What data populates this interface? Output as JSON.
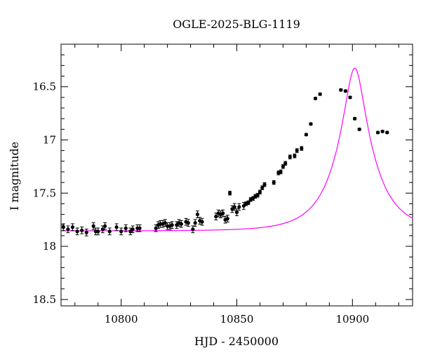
{
  "chart_data": {
    "type": "scatter",
    "title": "OGLE-2025-BLG-1119",
    "xlabel": "HJD - 2450000",
    "ylabel": "I magnitude",
    "xlim": [
      10774,
      10926
    ],
    "ylim": [
      18.56,
      16.1
    ],
    "y_inverted": true,
    "x_ticks": [
      10800,
      10850,
      10900
    ],
    "y_ticks": [
      16.5,
      17,
      17.5,
      18,
      18.5
    ],
    "x_tick_labels": [
      "10800",
      "10850",
      "10900"
    ],
    "y_tick_labels": [
      "16.5",
      "17",
      "17.5",
      "18",
      "18.5"
    ],
    "grid": false,
    "colors": {
      "points": "#000000",
      "model": "#ff00ff",
      "axes": "#000000"
    },
    "series": [
      {
        "kind": "observations",
        "x": [
          10775,
          10777,
          10779,
          10781,
          10783,
          10785,
          10788,
          10789,
          10790,
          10792,
          10793,
          10795,
          10798,
          10800,
          10802,
          10804,
          10805,
          10807,
          10808,
          10815,
          10816,
          10817,
          10818,
          10819,
          10820,
          10821,
          10822,
          10824,
          10825,
          10826,
          10828,
          10829,
          10831,
          10832,
          10833,
          10834,
          10835,
          10841,
          10842,
          10843,
          10844,
          10845,
          10846,
          10847,
          10848,
          10849,
          10850,
          10851,
          10853,
          10854,
          10855,
          10856,
          10857,
          10858,
          10859,
          10860,
          10861,
          10862,
          10866,
          10868,
          10869,
          10870,
          10871,
          10873,
          10875,
          10876,
          10878,
          10880,
          10882,
          10884,
          10886,
          10895,
          10897,
          10899,
          10901,
          10903,
          10911,
          10913,
          10915
        ],
        "y": [
          17.82,
          17.84,
          17.82,
          17.86,
          17.85,
          17.87,
          17.81,
          17.86,
          17.86,
          17.84,
          17.81,
          17.86,
          17.82,
          17.86,
          17.83,
          17.86,
          17.84,
          17.83,
          17.83,
          17.83,
          17.8,
          17.79,
          17.79,
          17.78,
          17.81,
          17.81,
          17.8,
          17.8,
          17.78,
          17.79,
          17.77,
          17.78,
          17.84,
          17.78,
          17.7,
          17.76,
          17.77,
          17.72,
          17.69,
          17.7,
          17.69,
          17.75,
          17.74,
          17.5,
          17.65,
          17.63,
          17.68,
          17.63,
          17.62,
          17.6,
          17.59,
          17.56,
          17.55,
          17.53,
          17.52,
          17.49,
          17.45,
          17.42,
          17.4,
          17.31,
          17.3,
          17.25,
          17.22,
          17.16,
          17.15,
          17.1,
          17.08,
          16.95,
          16.85,
          16.61,
          16.57,
          16.53,
          16.54,
          16.6,
          16.8,
          16.9,
          16.93,
          16.92,
          16.93
        ]
      },
      {
        "kind": "model",
        "u0": 0.25,
        "t0": 10901,
        "tE": 16,
        "baseline_mag": 17.855
      }
    ]
  }
}
